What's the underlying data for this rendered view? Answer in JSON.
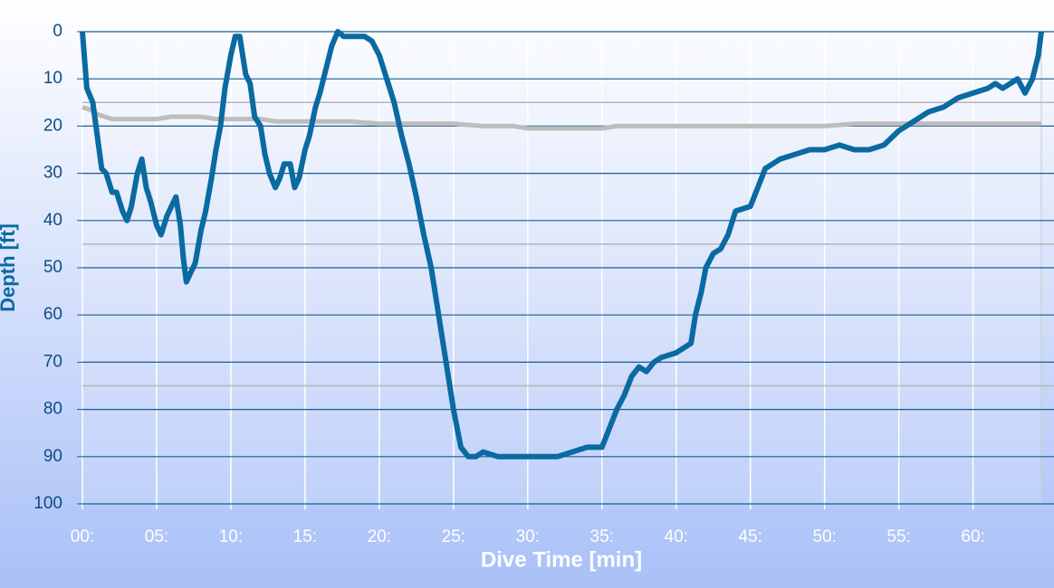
{
  "chart_data": {
    "type": "line",
    "xlabel": "Dive Time [min]",
    "ylabel": "Depth [ft]",
    "ylim": [
      0,
      100
    ],
    "y_inverted": true,
    "yticks": [
      0,
      10,
      20,
      30,
      40,
      50,
      60,
      70,
      80,
      90,
      100
    ],
    "xlim": [
      0,
      64.6
    ],
    "xticks": [
      {
        "value": 0,
        "label": "00:"
      },
      {
        "value": 5,
        "label": "05:"
      },
      {
        "value": 10,
        "label": "10:"
      },
      {
        "value": 15,
        "label": "15:"
      },
      {
        "value": 20,
        "label": "20:"
      },
      {
        "value": 25,
        "label": "25:"
      },
      {
        "value": 30,
        "label": "30:"
      },
      {
        "value": 35,
        "label": "35:"
      },
      {
        "value": 40,
        "label": "40:"
      },
      {
        "value": 45,
        "label": "45:"
      },
      {
        "value": 50,
        "label": "50:"
      },
      {
        "value": 55,
        "label": "55:"
      },
      {
        "value": 60,
        "label": "60:"
      }
    ],
    "grid": true,
    "grid_color": "#1a5d93",
    "reference_lines": [
      15,
      45,
      75
    ],
    "reference_color": "#b5b5b5",
    "series": [
      {
        "color": "#bdbdbd",
        "x": [
          0,
          0.5,
          1,
          1.5,
          2,
          3,
          4,
          5,
          6,
          7,
          8,
          9,
          10,
          11,
          12,
          13,
          14,
          16,
          18,
          20,
          22,
          24,
          25,
          27,
          29,
          30,
          32,
          34,
          35,
          36,
          38,
          40,
          42,
          44,
          46,
          48,
          50,
          52,
          54,
          56,
          58,
          60,
          62,
          64.6
        ],
        "values": [
          16,
          16.5,
          17.5,
          18,
          18.5,
          18.5,
          18.5,
          18.5,
          18,
          18,
          18,
          18.5,
          18.5,
          18.5,
          18.5,
          19,
          19,
          19,
          19,
          19.5,
          19.5,
          19.5,
          19.5,
          20,
          20,
          20.5,
          20.5,
          20.5,
          20.5,
          20,
          20,
          20,
          20,
          20,
          20,
          20,
          20,
          19.5,
          19.5,
          19.5,
          19.5,
          19.5,
          19.5,
          19.5
        ]
      },
      {
        "color": "#0a6aa1",
        "x": [
          0,
          0.3,
          0.7,
          1,
          1.3,
          1.6,
          2,
          2.3,
          2.7,
          3,
          3.3,
          3.7,
          4,
          4.3,
          4.6,
          5,
          5.3,
          5.7,
          6,
          6.3,
          6.6,
          6.8,
          7,
          7.3,
          7.6,
          8,
          8.3,
          8.7,
          9,
          9.3,
          9.6,
          10,
          10.3,
          10.6,
          10.8,
          11,
          11.3,
          11.6,
          12,
          12.3,
          12.6,
          13,
          13.3,
          13.6,
          14,
          14.3,
          14.6,
          15,
          15.3,
          15.7,
          16,
          16.4,
          16.8,
          17.2,
          17.6,
          18,
          18.5,
          19,
          19.5,
          20,
          20.5,
          21,
          21.5,
          22,
          22.5,
          23,
          23.5,
          24,
          24.5,
          25,
          25.5,
          26,
          26.5,
          27,
          28,
          29,
          30,
          31,
          32,
          33,
          34,
          35,
          35.5,
          36,
          36.5,
          37,
          37.5,
          38,
          38.5,
          39,
          40,
          41,
          41.3,
          41.7,
          42,
          42.5,
          43,
          43.5,
          44,
          45,
          45.5,
          46,
          47,
          48,
          49,
          50,
          51,
          52,
          53,
          54,
          55,
          56,
          57,
          58,
          59,
          60,
          61,
          61.5,
          62,
          63,
          63.5,
          64,
          64.4,
          64.6
        ],
        "values": [
          0,
          12,
          15,
          22,
          29,
          30,
          34,
          34,
          38,
          40,
          37,
          30,
          27,
          33,
          36,
          41,
          43,
          39,
          37,
          35,
          41,
          48,
          53,
          51,
          49,
          42,
          38,
          31,
          25,
          20,
          12,
          5,
          1,
          1,
          5,
          9,
          11,
          18,
          20,
          26,
          30,
          33,
          31,
          28,
          28,
          33,
          31,
          25,
          22,
          16,
          13,
          8,
          3,
          0,
          1,
          1,
          1,
          1,
          2,
          5,
          10,
          15,
          22,
          28,
          35,
          43,
          50,
          60,
          70,
          80,
          88,
          90,
          90,
          89,
          90,
          90,
          90,
          90,
          90,
          89,
          88,
          88,
          84,
          80,
          77,
          73,
          71,
          72,
          70,
          69,
          68,
          66,
          60,
          55,
          50,
          47,
          46,
          43,
          38,
          37,
          33,
          29,
          27,
          26,
          25,
          25,
          24,
          25,
          25,
          24,
          21,
          19,
          17,
          16,
          14,
          13,
          12,
          11,
          12,
          10,
          13,
          10,
          5,
          0
        ]
      }
    ]
  }
}
